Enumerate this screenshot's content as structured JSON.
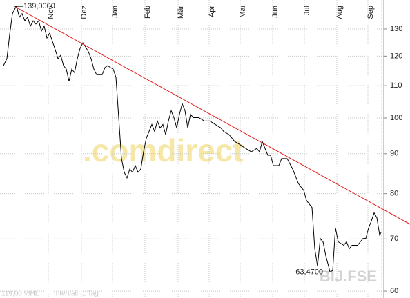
{
  "chart_data": {
    "type": "line",
    "log_scale": true,
    "grid": true,
    "xlim": [
      0,
      560
    ],
    "xticks": [
      {
        "value": 70,
        "label": "Nov"
      },
      {
        "value": 118,
        "label": "Dez"
      },
      {
        "value": 163,
        "label": "Jan"
      },
      {
        "value": 210,
        "label": "Feb"
      },
      {
        "value": 258,
        "label": "Mär"
      },
      {
        "value": 303,
        "label": "Apr"
      },
      {
        "value": 348,
        "label": "Mai"
      },
      {
        "value": 395,
        "label": "Jun"
      },
      {
        "value": 441,
        "label": "Jul"
      },
      {
        "value": 488,
        "label": "Aug"
      },
      {
        "value": 533,
        "label": "Sep"
      }
    ],
    "ylim": [
      58.8,
      141.6
    ],
    "yticks": [
      60,
      70,
      80,
      90,
      100,
      110,
      120,
      130
    ],
    "series": [
      {
        "color": "#000000",
        "x": [
          5,
          10,
          14,
          18,
          22,
          24,
          28,
          32,
          36,
          40,
          44,
          48,
          52,
          56,
          60,
          64,
          68,
          72,
          76,
          80,
          84,
          88,
          92,
          96,
          100,
          104,
          108,
          112,
          116,
          120,
          124,
          128,
          132,
          136,
          140,
          148,
          152,
          156,
          160,
          164,
          168,
          172,
          176,
          180,
          184,
          188,
          192,
          196,
          200,
          204,
          208,
          212,
          216,
          220,
          224,
          228,
          232,
          236,
          240,
          244,
          248,
          252,
          256,
          260,
          264,
          268,
          272,
          276,
          280,
          288,
          296,
          304,
          312,
          320,
          324,
          332,
          340,
          348,
          356,
          364,
          372,
          376,
          380,
          384,
          388,
          392,
          396,
          404,
          408,
          416,
          424,
          428,
          432,
          436,
          440,
          444,
          452,
          456,
          460,
          464,
          468,
          472,
          476,
          478,
          482,
          486,
          490,
          498,
          502,
          506,
          510,
          514,
          518,
          522,
          526,
          530,
          534,
          538,
          542,
          546,
          550,
          552
        ],
        "values": [
          116.7,
          119.1,
          127.9,
          136.0,
          138.2,
          139.0,
          134.6,
          136.0,
          133.2,
          134.6,
          131.1,
          133.2,
          131.9,
          133.2,
          129.2,
          131.1,
          126.6,
          128.4,
          125.3,
          122.3,
          119.1,
          120.3,
          116.7,
          115.5,
          111.4,
          115.5,
          114.3,
          119.1,
          122.8,
          124.8,
          123.3,
          121.6,
          119.1,
          115.5,
          113.6,
          113.6,
          116.0,
          116.7,
          116.0,
          115.5,
          112.7,
          100.1,
          88.7,
          85.2,
          83.8,
          86.0,
          85.2,
          86.9,
          85.2,
          86.0,
          90.5,
          94.2,
          96.1,
          98.1,
          96.1,
          99.1,
          97.1,
          98.1,
          95.2,
          99.1,
          102.2,
          100.1,
          97.1,
          101.1,
          104.3,
          102.2,
          97.1,
          101.1,
          100.1,
          100.1,
          99.1,
          99.1,
          98.1,
          97.1,
          96.1,
          95.2,
          93.3,
          92.4,
          91.4,
          90.5,
          91.4,
          90.5,
          93.3,
          91.4,
          89.6,
          89.6,
          86.9,
          86.9,
          88.7,
          88.7,
          86.0,
          84.3,
          82.5,
          81.6,
          80.8,
          78.4,
          76.8,
          68.0,
          64.6,
          70.1,
          69.4,
          66.6,
          64.6,
          63.47,
          63.8,
          72.3,
          69.4,
          68.7,
          69.4,
          68.0,
          68.7,
          68.7,
          68.7,
          69.4,
          70.1,
          70.1,
          72.3,
          73.8,
          75.6,
          74.5,
          70.8,
          71.3
        ]
      },
      {
        "color": "#e0201c",
        "x": [
          22,
          594
        ],
        "values": [
          138.8,
          73.1
        ]
      }
    ],
    "annotations": [
      {
        "text": "139,0000",
        "x": 24,
        "value": 139.0
      },
      {
        "text": "63,4700",
        "x": 478,
        "value": 63.47
      }
    ],
    "current_marker_x": 553,
    "watermark": ".comdirect",
    "symbol": "BIJ.FSE",
    "footer": [
      "119,00 %HL",
      "Intervall: 1 Tag"
    ]
  }
}
